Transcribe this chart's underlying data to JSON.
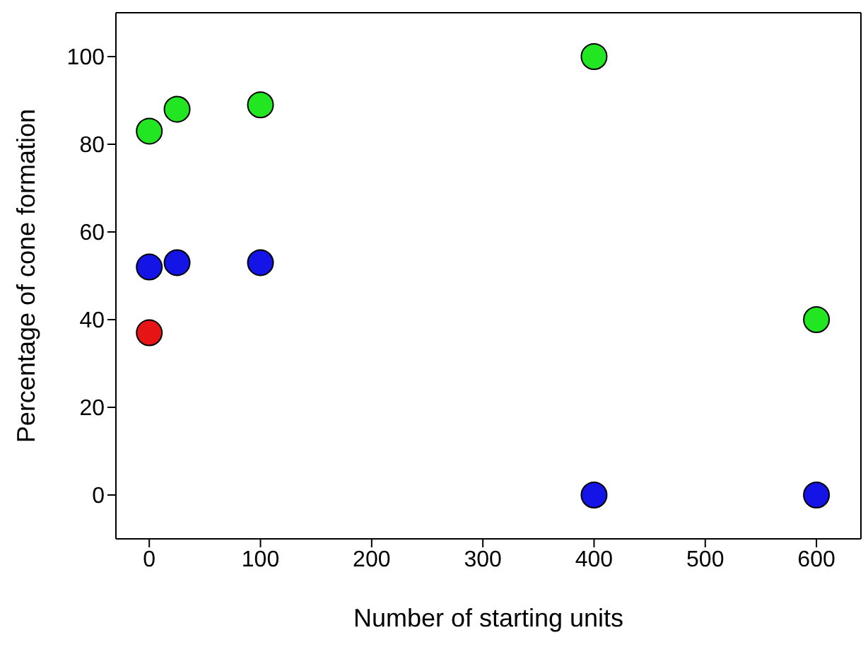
{
  "chart_data": {
    "type": "scatter",
    "xlabel": "Number of starting units",
    "ylabel": "Percentage of cone formation",
    "xlim": [
      -30,
      640
    ],
    "ylim": [
      -10,
      110
    ],
    "xticks": [
      0,
      100,
      200,
      300,
      400,
      500,
      600
    ],
    "yticks": [
      0,
      20,
      40,
      60,
      80,
      100
    ],
    "legend": false,
    "marker": "circle",
    "series": [
      {
        "color": "#22e622",
        "x": [
          0,
          25,
          100,
          400,
          600
        ],
        "values": [
          83,
          88,
          89,
          100,
          40
        ]
      },
      {
        "color": "#1414e6",
        "x": [
          0,
          25,
          100,
          400,
          600
        ],
        "values": [
          52,
          53,
          53,
          0,
          0
        ]
      },
      {
        "color": "#e61414",
        "x": [
          0
        ],
        "values": [
          37
        ]
      }
    ]
  }
}
